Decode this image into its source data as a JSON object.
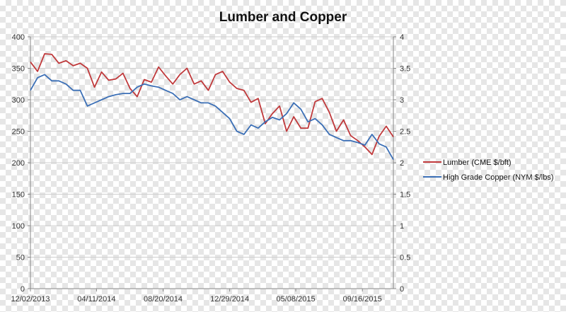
{
  "chart_data": {
    "type": "line",
    "title": "Lumber and Copper",
    "xlabel": "",
    "ylabel": "",
    "x_tick_labels": [
      "12/02/2013",
      "04/11/2014",
      "08/20/2014",
      "12/29/2014",
      "05/08/2015",
      "09/16/2015"
    ],
    "y_left": {
      "range": [
        0,
        400
      ],
      "ticks": [
        "0",
        "50",
        "100",
        "150",
        "200",
        "250",
        "300",
        "350",
        "400"
      ]
    },
    "y_right": {
      "range": [
        0,
        4
      ],
      "ticks": [
        "0",
        "0.5",
        "1",
        "1.5",
        "2",
        "2.5",
        "3",
        "3.5",
        "4"
      ]
    },
    "grid": "horizontal",
    "legend_position": "right",
    "x": [
      "2013-12-02",
      "2013-12-16",
      "2013-12-30",
      "2014-01-13",
      "2014-01-27",
      "2014-02-10",
      "2014-02-24",
      "2014-03-10",
      "2014-03-24",
      "2014-04-07",
      "2014-04-21",
      "2014-05-05",
      "2014-05-19",
      "2014-06-02",
      "2014-06-16",
      "2014-06-30",
      "2014-07-14",
      "2014-07-28",
      "2014-08-11",
      "2014-08-25",
      "2014-09-08",
      "2014-09-22",
      "2014-10-06",
      "2014-10-20",
      "2014-11-03",
      "2014-11-17",
      "2014-12-01",
      "2014-12-15",
      "2014-12-29",
      "2015-01-12",
      "2015-01-26",
      "2015-02-09",
      "2015-02-23",
      "2015-03-09",
      "2015-03-23",
      "2015-04-06",
      "2015-04-20",
      "2015-05-04",
      "2015-05-18",
      "2015-06-01",
      "2015-06-15",
      "2015-06-29",
      "2015-07-13",
      "2015-07-27",
      "2015-08-10",
      "2015-08-24",
      "2015-09-07",
      "2015-09-21",
      "2015-10-05",
      "2015-10-19",
      "2015-11-02",
      "2015-11-16"
    ],
    "series": [
      {
        "name": "Lumber (CME $/bft)",
        "axis": "left",
        "color": "#c0393b",
        "values": [
          360,
          345,
          373,
          372,
          358,
          362,
          354,
          358,
          350,
          320,
          344,
          331,
          333,
          342,
          318,
          305,
          332,
          328,
          352,
          338,
          325,
          340,
          350,
          325,
          330,
          315,
          340,
          345,
          328,
          318,
          315,
          296,
          302,
          262,
          278,
          290,
          250,
          273,
          255,
          255,
          297,
          302,
          280,
          250,
          268,
          243,
          235,
          225,
          213,
          242,
          258,
          241
        ]
      },
      {
        "name": "High Grade Copper (NYM $/lbs)",
        "axis": "right",
        "color": "#3b6fb6",
        "values": [
          3.15,
          3.35,
          3.4,
          3.3,
          3.3,
          3.25,
          3.15,
          3.15,
          2.9,
          2.95,
          3.0,
          3.05,
          3.08,
          3.1,
          3.1,
          3.2,
          3.25,
          3.22,
          3.2,
          3.15,
          3.1,
          3.0,
          3.05,
          3.0,
          2.95,
          2.95,
          2.9,
          2.8,
          2.7,
          2.5,
          2.45,
          2.6,
          2.55,
          2.65,
          2.72,
          2.68,
          2.78,
          2.95,
          2.85,
          2.65,
          2.7,
          2.6,
          2.45,
          2.4,
          2.35,
          2.35,
          2.32,
          2.28,
          2.45,
          2.3,
          2.25,
          2.05
        ]
      }
    ]
  }
}
